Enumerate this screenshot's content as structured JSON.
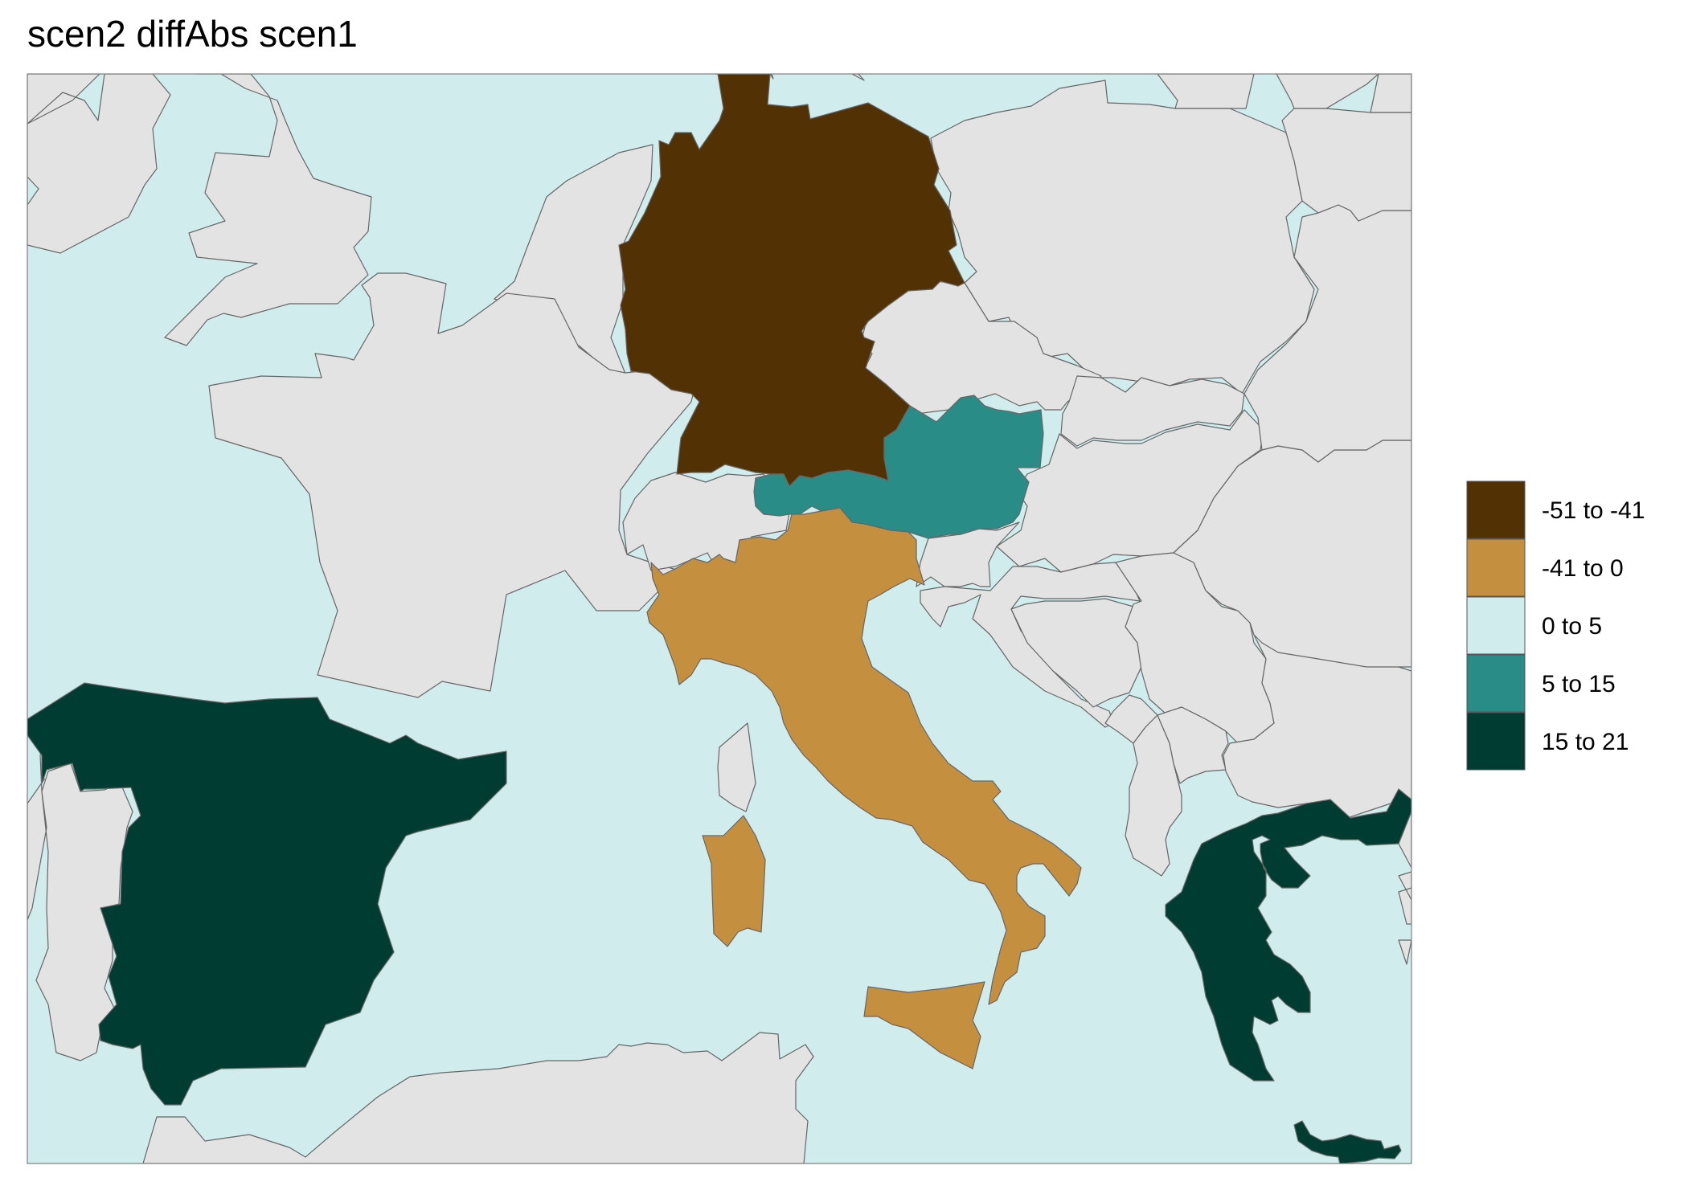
{
  "title": "scen2 diffAbs scen1",
  "colors": {
    "sea": "#d0eced",
    "land": "#e3e3e3",
    "border": "#666666",
    "frame": "#7f7f7f"
  },
  "legend": {
    "items": [
      {
        "label": "-51 to -41",
        "color": "#523204"
      },
      {
        "label": "-41 to 0",
        "color": "#c58f40"
      },
      {
        "label": "0 to 5",
        "color": "#d0eced"
      },
      {
        "label": "5 to 15",
        "color": "#2a8c86"
      },
      {
        "label": "15 to 21",
        "color": "#003c31"
      }
    ]
  },
  "chart_data": {
    "type": "choropleth",
    "title": "scen2 diffAbs scen1",
    "regions": [
      {
        "region": "Germany",
        "class": "-51 to -41"
      },
      {
        "region": "Italy",
        "class": "-41 to 0"
      },
      {
        "region": "Austria",
        "class": "5 to 15"
      },
      {
        "region": "Spain",
        "class": "15 to 21"
      },
      {
        "region": "Greece",
        "class": "15 to 21"
      }
    ],
    "legend_placement": "right"
  }
}
